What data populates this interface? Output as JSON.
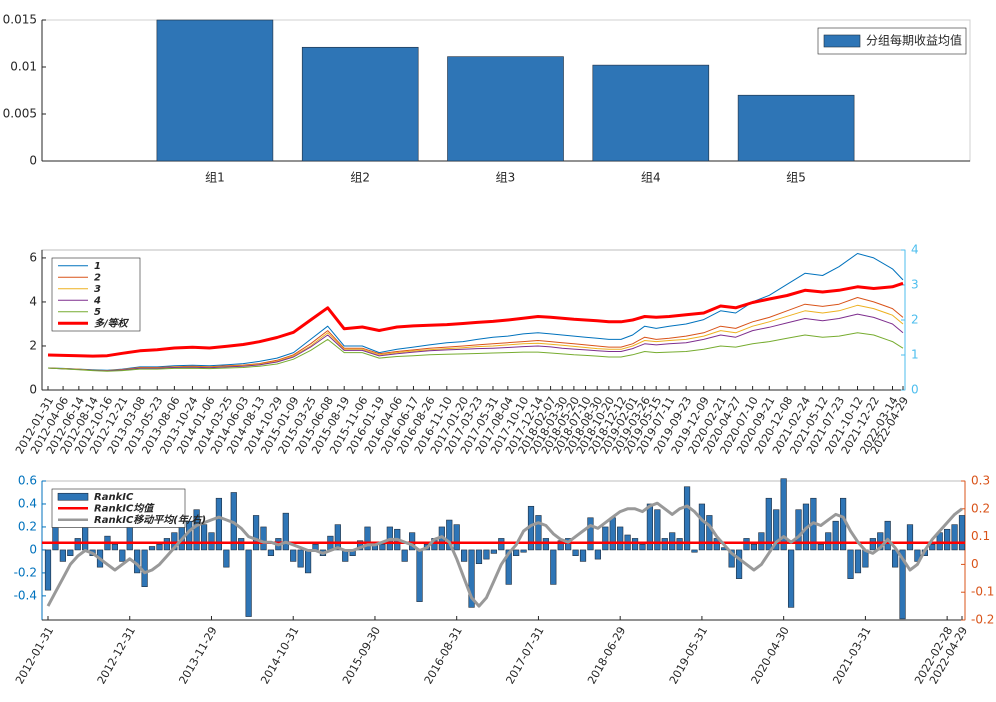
{
  "chart_data": [
    {
      "type": "bar",
      "categories": [
        "组1",
        "组2",
        "组3",
        "组4",
        "组5"
      ],
      "series": [
        {
          "name": "分组每期收益均值",
          "color": "#2e75b6",
          "values": [
            0.015,
            0.0121,
            0.0111,
            0.0102,
            0.007
          ]
        }
      ],
      "ylim": [
        0,
        0.015
      ],
      "yticks": [
        0,
        0.005,
        0.01,
        0.015
      ],
      "legend": "upper right"
    },
    {
      "type": "line",
      "x": [
        "2012-01-31",
        "2012-04-06",
        "2012-06-14",
        "2012-08-14",
        "2012-10-16",
        "2012-12-21",
        "2013-03-08",
        "2013-05-23",
        "2013-08-06",
        "2013-10-24",
        "2014-01-06",
        "2014-03-25",
        "2014-06-03",
        "2014-08-13",
        "2014-10-29",
        "2015-01-09",
        "2015-03-25",
        "2015-06-08",
        "2015-08-19",
        "2015-11-06",
        "2016-01-19",
        "2016-04-06",
        "2016-06-17",
        "2016-08-26",
        "2016-11-10",
        "2017-01-20",
        "2017-03-23",
        "2017-05-31",
        "2017-08-04",
        "2017-10-10",
        "2017-12-14",
        "2018-02-07",
        "2018-03-30",
        "2018-05-20",
        "2018-07-10",
        "2018-08-30",
        "2018-10-20",
        "2018-12-12",
        "2019-02-01",
        "2019-03-26",
        "2019-05-15",
        "2019-07-11",
        "2019-09-23",
        "2019-12-09",
        "2020-02-21",
        "2020-04-27",
        "2020-07-10",
        "2020-09-21",
        "2020-12-08",
        "2021-02-24",
        "2021-05-12",
        "2021-07-23",
        "2021-10-12",
        "2021-12-22",
        "2022-03-14",
        "2022-04-29"
      ],
      "series": [
        {
          "name": "1",
          "color": "#0072bd",
          "line_width": 1,
          "values": [
            1.0,
            0.98,
            0.95,
            0.92,
            0.9,
            0.95,
            1.05,
            1.05,
            1.1,
            1.12,
            1.1,
            1.15,
            1.2,
            1.3,
            1.45,
            1.7,
            2.3,
            2.9,
            2.0,
            2.0,
            1.7,
            1.85,
            1.95,
            2.05,
            2.15,
            2.2,
            2.3,
            2.4,
            2.45,
            2.55,
            2.6,
            2.55,
            2.5,
            2.45,
            2.4,
            2.35,
            2.3,
            2.3,
            2.5,
            2.9,
            2.8,
            2.9,
            3.0,
            3.2,
            3.6,
            3.5,
            4.0,
            4.3,
            4.8,
            5.3,
            5.2,
            5.6,
            6.2,
            6.0,
            5.5,
            5.0
          ]
        },
        {
          "name": "2",
          "color": "#d95319",
          "line_width": 1,
          "values": [
            1.0,
            0.97,
            0.94,
            0.9,
            0.88,
            0.93,
            1.02,
            1.02,
            1.06,
            1.08,
            1.06,
            1.1,
            1.13,
            1.2,
            1.35,
            1.6,
            2.1,
            2.7,
            1.9,
            1.9,
            1.65,
            1.75,
            1.82,
            1.9,
            1.95,
            2.0,
            2.05,
            2.1,
            2.15,
            2.2,
            2.25,
            2.2,
            2.15,
            2.1,
            2.05,
            2.0,
            1.95,
            1.95,
            2.1,
            2.4,
            2.3,
            2.35,
            2.45,
            2.6,
            2.9,
            2.8,
            3.1,
            3.3,
            3.6,
            3.9,
            3.8,
            3.9,
            4.2,
            4.0,
            3.7,
            3.3
          ]
        },
        {
          "name": "3",
          "color": "#edb120",
          "line_width": 1,
          "values": [
            1.0,
            0.97,
            0.94,
            0.9,
            0.88,
            0.92,
            1.0,
            1.0,
            1.04,
            1.05,
            1.03,
            1.07,
            1.1,
            1.17,
            1.3,
            1.55,
            2.0,
            2.6,
            1.85,
            1.85,
            1.6,
            1.7,
            1.77,
            1.83,
            1.88,
            1.92,
            1.97,
            2.0,
            2.05,
            2.1,
            2.12,
            2.08,
            2.03,
            1.98,
            1.93,
            1.88,
            1.85,
            1.85,
            2.0,
            2.25,
            2.2,
            2.25,
            2.3,
            2.45,
            2.7,
            2.6,
            2.9,
            3.1,
            3.35,
            3.6,
            3.5,
            3.6,
            3.85,
            3.7,
            3.4,
            3.0
          ]
        },
        {
          "name": "4",
          "color": "#7e2f8e",
          "line_width": 1,
          "values": [
            1.0,
            0.96,
            0.93,
            0.89,
            0.87,
            0.91,
            0.99,
            0.99,
            1.02,
            1.03,
            1.01,
            1.05,
            1.08,
            1.14,
            1.27,
            1.5,
            1.95,
            2.5,
            1.8,
            1.8,
            1.55,
            1.65,
            1.72,
            1.78,
            1.82,
            1.85,
            1.88,
            1.9,
            1.93,
            1.97,
            2.0,
            1.96,
            1.9,
            1.86,
            1.82,
            1.78,
            1.75,
            1.75,
            1.88,
            2.1,
            2.05,
            2.1,
            2.15,
            2.3,
            2.5,
            2.4,
            2.7,
            2.85,
            3.05,
            3.25,
            3.15,
            3.25,
            3.45,
            3.3,
            3.0,
            2.6
          ]
        },
        {
          "name": "5",
          "color": "#77ac30",
          "line_width": 1,
          "values": [
            1.0,
            0.96,
            0.92,
            0.88,
            0.85,
            0.88,
            0.95,
            0.95,
            0.98,
            0.99,
            0.97,
            1.0,
            1.02,
            1.08,
            1.18,
            1.4,
            1.8,
            2.3,
            1.7,
            1.7,
            1.45,
            1.52,
            1.56,
            1.6,
            1.62,
            1.64,
            1.66,
            1.68,
            1.7,
            1.72,
            1.72,
            1.68,
            1.64,
            1.6,
            1.57,
            1.54,
            1.5,
            1.5,
            1.6,
            1.75,
            1.7,
            1.72,
            1.75,
            1.85,
            2.0,
            1.95,
            2.1,
            2.2,
            2.35,
            2.5,
            2.4,
            2.45,
            2.6,
            2.5,
            2.2,
            1.9
          ]
        },
        {
          "name": "多/等权",
          "color": "#ff0000",
          "line_width": 3,
          "axis": "y2",
          "values": [
            1.0,
            0.99,
            0.98,
            0.97,
            0.98,
            1.05,
            1.12,
            1.15,
            1.2,
            1.22,
            1.2,
            1.25,
            1.3,
            1.38,
            1.5,
            1.65,
            2.0,
            2.35,
            1.75,
            1.8,
            1.7,
            1.8,
            1.83,
            1.85,
            1.87,
            1.9,
            1.93,
            1.96,
            2.0,
            2.05,
            2.1,
            2.08,
            2.05,
            2.02,
            2.0,
            1.98,
            1.95,
            1.95,
            2.0,
            2.1,
            2.08,
            2.1,
            2.15,
            2.2,
            2.4,
            2.35,
            2.5,
            2.6,
            2.7,
            2.85,
            2.8,
            2.85,
            2.95,
            2.9,
            2.95,
            3.05
          ]
        }
      ],
      "ylim": [
        0,
        6.36
      ],
      "yticks": [
        0,
        2,
        4,
        6
      ],
      "y2lim": [
        0,
        4
      ],
      "y2ticks": [
        0,
        1,
        2,
        3,
        4
      ],
      "y2color": "#4dbeee",
      "legend": "upper left"
    },
    {
      "type": "bar",
      "x": [
        "2012-01-31",
        null,
        null,
        null,
        null,
        null,
        null,
        null,
        null,
        null,
        null,
        "2012-12-31",
        null,
        null,
        null,
        null,
        null,
        null,
        null,
        null,
        null,
        null,
        "2013-11-29",
        null,
        null,
        null,
        null,
        null,
        null,
        null,
        null,
        null,
        null,
        "2014-10-31",
        null,
        null,
        null,
        null,
        null,
        null,
        null,
        null,
        null,
        null,
        "2015-09-30",
        null,
        null,
        null,
        null,
        null,
        null,
        null,
        null,
        null,
        null,
        "2016-08-31",
        null,
        null,
        null,
        null,
        null,
        null,
        null,
        null,
        null,
        null,
        "2017-07-31",
        null,
        null,
        null,
        null,
        null,
        null,
        null,
        null,
        null,
        null,
        "2018-06-29",
        null,
        null,
        null,
        null,
        null,
        null,
        null,
        null,
        null,
        null,
        "2019-05-31",
        null,
        null,
        null,
        null,
        null,
        null,
        null,
        null,
        null,
        null,
        "2020-04-30",
        null,
        null,
        null,
        null,
        null,
        null,
        null,
        null,
        null,
        null,
        "2021-03-31",
        null,
        null,
        null,
        null,
        null,
        null,
        null,
        null,
        null,
        null,
        "2022-02-28",
        null,
        "2022-04-29"
      ],
      "series": [
        {
          "name": "RankIC",
          "color": "#2e75b6",
          "values": [
            -0.35,
            0.2,
            -0.1,
            -0.05,
            0.1,
            0.3,
            -0.05,
            -0.15,
            0.12,
            0.05,
            -0.1,
            0.2,
            -0.2,
            -0.32,
            0.03,
            0.05,
            0.1,
            0.15,
            0.2,
            0.25,
            0.35,
            0.22,
            0.15,
            0.45,
            -0.15,
            0.5,
            0.1,
            -0.58,
            0.3,
            0.2,
            -0.05,
            0.1,
            0.32,
            -0.1,
            -0.15,
            -0.2,
            0.05,
            -0.05,
            0.12,
            0.22,
            -0.1,
            -0.05,
            0.08,
            0.2,
            0.05,
            0.05,
            0.2,
            0.18,
            -0.1,
            0.15,
            -0.45,
            0.05,
            0.1,
            0.2,
            0.26,
            0.22,
            -0.1,
            -0.5,
            -0.12,
            -0.08,
            -0.03,
            0.1,
            -0.3,
            -0.05,
            -0.02,
            0.38,
            0.3,
            0.1,
            -0.3,
            0.08,
            0.1,
            -0.05,
            -0.1,
            0.28,
            -0.08,
            0.2,
            0.28,
            0.2,
            0.13,
            0.1,
            0.05,
            0.4,
            0.35,
            0.1,
            0.15,
            0.1,
            0.55,
            -0.02,
            0.4,
            0.3,
            0.1,
            0.02,
            -0.15,
            -0.25,
            0.1,
            0.05,
            0.15,
            0.45,
            0.35,
            0.62,
            -0.5,
            0.35,
            0.4,
            0.45,
            0.05,
            0.15,
            0.25,
            0.45,
            -0.25,
            -0.2,
            -0.15,
            0.1,
            0.15,
            0.25,
            -0.15,
            -0.6,
            0.22,
            -0.1,
            -0.05,
            0.05,
            0.15,
            0.18,
            0.22,
            0.3
          ]
        },
        {
          "name": "RankIC均值",
          "color": "#ff0000",
          "axis": "y2",
          "value": 0.078
        },
        {
          "name": "RankIC移动平均(年/右)",
          "color": "#999999",
          "axis": "y2",
          "type": "line",
          "values": [
            -0.15,
            -0.1,
            -0.05,
            0.0,
            0.03,
            0.05,
            0.04,
            0.02,
            0.0,
            -0.02,
            0.0,
            0.02,
            0.0,
            -0.03,
            -0.02,
            0.0,
            0.03,
            0.06,
            0.09,
            0.12,
            0.14,
            0.15,
            0.16,
            0.17,
            0.16,
            0.15,
            0.13,
            0.1,
            0.09,
            0.08,
            0.08,
            0.07,
            0.08,
            0.07,
            0.06,
            0.05,
            0.05,
            0.04,
            0.05,
            0.06,
            0.05,
            0.05,
            0.06,
            0.07,
            0.07,
            0.08,
            0.09,
            0.09,
            0.08,
            0.07,
            0.05,
            0.06,
            0.09,
            0.1,
            0.08,
            0.02,
            -0.05,
            -0.12,
            -0.15,
            -0.12,
            -0.06,
            0.0,
            0.04,
            0.07,
            0.12,
            0.14,
            0.15,
            0.14,
            0.11,
            0.09,
            0.08,
            0.1,
            0.12,
            0.14,
            0.13,
            0.15,
            0.17,
            0.19,
            0.2,
            0.2,
            0.19,
            0.21,
            0.22,
            0.2,
            0.18,
            0.2,
            0.21,
            0.19,
            0.16,
            0.14,
            0.1,
            0.07,
            0.04,
            0.02,
            0.0,
            -0.02,
            0.0,
            0.04,
            0.08,
            0.1,
            0.08,
            0.1,
            0.13,
            0.15,
            0.14,
            0.16,
            0.18,
            0.17,
            0.12,
            0.08,
            0.05,
            0.04,
            0.06,
            0.09,
            0.06,
            0.02,
            -0.02,
            0.0,
            0.05,
            0.09,
            0.12,
            0.15,
            0.18,
            0.2
          ]
        }
      ],
      "ylim": [
        -0.61,
        0.6
      ],
      "yticks": [
        -0.4,
        -0.2,
        0,
        0.2,
        0.4,
        0.6
      ],
      "y2lim": [
        -0.2,
        0.3
      ],
      "y2ticks": [
        -0.2,
        -0.1,
        0,
        0.1,
        0.2,
        0.3
      ],
      "ycolor": "#0072bd",
      "y2color": "#d95319",
      "legend": "upper left"
    }
  ]
}
